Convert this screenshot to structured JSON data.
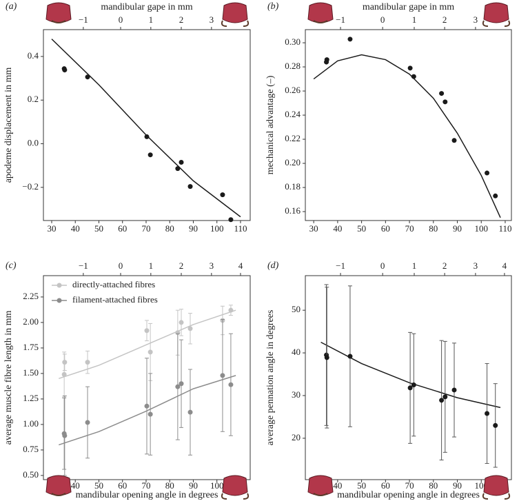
{
  "chart_data": [
    {
      "type": "scatter",
      "panel_label": "(a)",
      "x2label": "mandibular gape in mm",
      "ylabel": "apodeme displacement in mm",
      "xlim": [
        26.5,
        114.1
      ],
      "xticks": [
        30,
        40,
        50,
        60,
        70,
        80,
        90,
        100,
        110
      ],
      "x2ticks": [
        {
          "value": -1,
          "label": "−1"
        },
        0,
        1,
        2,
        3
      ],
      "x2tick_angles": [
        43.4,
        59.2,
        72.0,
        84.9,
        97.7
      ],
      "ylim": [
        -0.352,
        0.523
      ],
      "yticks": [
        {
          "value": -0.2,
          "label": "−0.2"
        },
        {
          "value": 0,
          "label": "0.0"
        },
        0.2,
        0.4
      ],
      "series": [
        {
          "color": "#1a1a1a",
          "x": [
            35.3,
            35.5,
            45.2,
            70.3,
            71.8,
            83.4,
            84.9,
            88.7,
            102.4,
            105.9
          ],
          "values": [
            0.344,
            0.338,
            0.306,
            0.032,
            -0.051,
            -0.114,
            -0.085,
            -0.196,
            -0.234,
            -0.348
          ],
          "fit_x": [
            30,
            50,
            70,
            90,
            110
          ],
          "fit_values": [
            0.48,
            0.27,
            0.04,
            -0.17,
            -0.335
          ]
        }
      ]
    },
    {
      "type": "scatter",
      "panel_label": "(b)",
      "x2label": "mandibular gape in mm",
      "ylabel": "mechanical advantage (–)",
      "xlim": [
        26.5,
        112.6
      ],
      "xticks": [
        30,
        40,
        50,
        60,
        70,
        80,
        90,
        100,
        110
      ],
      "x2ticks": [
        {
          "value": -1,
          "label": "−1"
        },
        0,
        1,
        2,
        3
      ],
      "x2tick_angles": [
        41.2,
        58.8,
        72.0,
        84.7,
        97.6
      ],
      "ylim": [
        0.1526,
        0.3109
      ],
      "yticks": [
        0.16,
        0.18,
        {
          "value": 0.2,
          "label": "0.20"
        },
        0.22,
        0.24,
        0.26,
        0.28,
        {
          "value": 0.3,
          "label": "0.30"
        }
      ],
      "series": [
        {
          "color": "#1a1a1a",
          "x": [
            35.3,
            35.5,
            45.2,
            70.3,
            71.8,
            83.4,
            84.9,
            88.7,
            102.4,
            105.9
          ],
          "values": [
            0.284,
            0.286,
            0.303,
            0.279,
            0.272,
            0.258,
            0.251,
            0.219,
            0.192,
            0.173
          ],
          "fit_x": [
            30,
            40,
            50,
            60,
            70,
            80,
            90,
            100,
            108
          ],
          "fit_values": [
            0.27,
            0.285,
            0.29,
            0.286,
            0.274,
            0.254,
            0.225,
            0.19,
            0.155
          ]
        }
      ]
    },
    {
      "type": "errorbar",
      "panel_label": "(c)",
      "xlabel": "mandibular opening angle in degrees",
      "ylabel": "average muscle fibre length in mm",
      "xlim": [
        26.5,
        114.1
      ],
      "xticks": [
        40,
        50,
        60,
        70,
        80,
        90,
        100
      ],
      "x2ticks": [
        {
          "value": -1,
          "label": "−1"
        },
        0,
        1,
        2,
        3,
        4
      ],
      "x2tick_angles": [
        43.4,
        59.2,
        72.0,
        84.9,
        97.7,
        110.0
      ],
      "ylim": [
        0.459,
        2.459
      ],
      "yticks": [
        {
          "value": 0.5,
          "label": "0.50"
        },
        0.75,
        {
          "value": 1,
          "label": "1.00"
        },
        1.25,
        {
          "value": 1.5,
          "label": "1.50"
        },
        1.75,
        {
          "value": 2,
          "label": "2.00"
        },
        2.25
      ],
      "legend": "upper left",
      "series": [
        {
          "name": "directly-attached fibres",
          "color": "#c4c4c4",
          "x": [
            35.3,
            35.5,
            45.2,
            70.3,
            71.8,
            83.4,
            84.9,
            88.7,
            102.4,
            105.9
          ],
          "values": [
            1.49,
            1.61,
            1.61,
            1.92,
            1.71,
            1.9,
            2.0,
            1.94,
            2.02,
            2.12
          ],
          "errors": [
            0.22,
            0.08,
            0.11,
            0.1,
            0.28,
            0.22,
            0.13,
            0.15,
            0.14,
            0.05
          ],
          "fit_x": [
            33,
            50,
            70,
            90,
            108
          ],
          "fit_values": [
            1.45,
            1.58,
            1.78,
            1.98,
            2.12
          ]
        },
        {
          "name": "filament-attached fibres",
          "color": "#8c8c8c",
          "x": [
            35.3,
            35.5,
            45.2,
            70.3,
            71.8,
            83.4,
            84.9,
            88.7,
            102.4,
            105.9
          ],
          "values": [
            0.91,
            0.89,
            1.02,
            1.18,
            1.1,
            1.37,
            1.4,
            1.12,
            1.48,
            1.39
          ],
          "errors": [
            0.35,
            0.39,
            0.35,
            0.47,
            0.4,
            0.52,
            0.43,
            0.42,
            0.55,
            0.5
          ],
          "fit_x": [
            33,
            50,
            70,
            90,
            108
          ],
          "fit_values": [
            0.8,
            0.93,
            1.13,
            1.35,
            1.48
          ]
        }
      ]
    },
    {
      "type": "errorbar",
      "panel_label": "(d)",
      "xlabel": "mandibular opening angle in degrees",
      "ylabel": "average pennation angle in degrees",
      "xlim": [
        26.5,
        112.6
      ],
      "xticks": [
        40,
        50,
        60,
        70,
        80,
        90,
        100
      ],
      "x2ticks": [
        {
          "value": -1,
          "label": "−1"
        },
        0,
        1,
        2,
        3,
        4
      ],
      "x2tick_angles": [
        41.2,
        58.8,
        72.0,
        84.7,
        97.6,
        109.7
      ],
      "ylim": [
        10.3,
        58.1
      ],
      "yticks": [
        20,
        30,
        40,
        50
      ],
      "series": [
        {
          "color": "#1a1a1a",
          "x": [
            35.3,
            35.5,
            45.2,
            70.3,
            71.8,
            83.4,
            84.9,
            88.7,
            102.4,
            105.9
          ],
          "values": [
            39.5,
            38.9,
            39.2,
            31.8,
            32.5,
            28.9,
            29.7,
            31.3,
            25.8,
            23.0
          ],
          "errors": [
            16.5,
            16.5,
            16.5,
            13,
            12,
            14,
            13,
            11,
            11.7,
            9.8
          ],
          "fit_x": [
            33,
            50,
            70,
            90,
            108
          ],
          "fit_values": [
            42.5,
            37.5,
            33,
            29.5,
            27.2
          ]
        }
      ]
    }
  ]
}
